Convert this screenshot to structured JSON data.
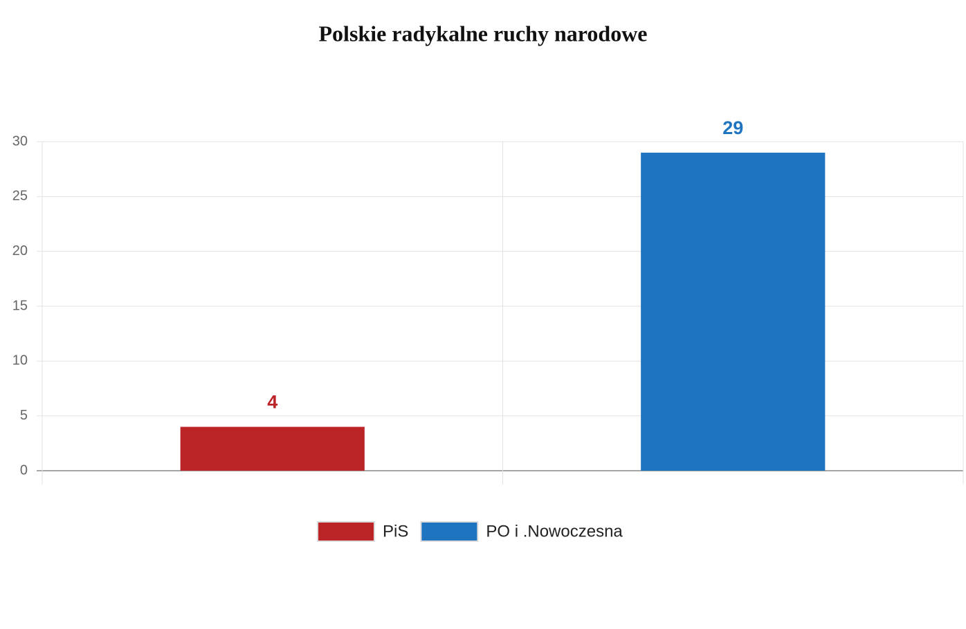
{
  "chart_data": {
    "type": "bar",
    "title": "Polskie radykalne ruchy narodowe",
    "categories": [
      null,
      null
    ],
    "series": [
      {
        "name": "PiS",
        "color": "#bb2528",
        "values": [
          4,
          null
        ]
      },
      {
        "name": "PO i .Nowoczesna",
        "color": "#1f74bf",
        "values": [
          null,
          29
        ]
      }
    ],
    "ylim": [
      0,
      30
    ],
    "yticks": [
      0,
      5,
      10,
      15,
      20,
      25,
      30
    ],
    "grid": true
  }
}
